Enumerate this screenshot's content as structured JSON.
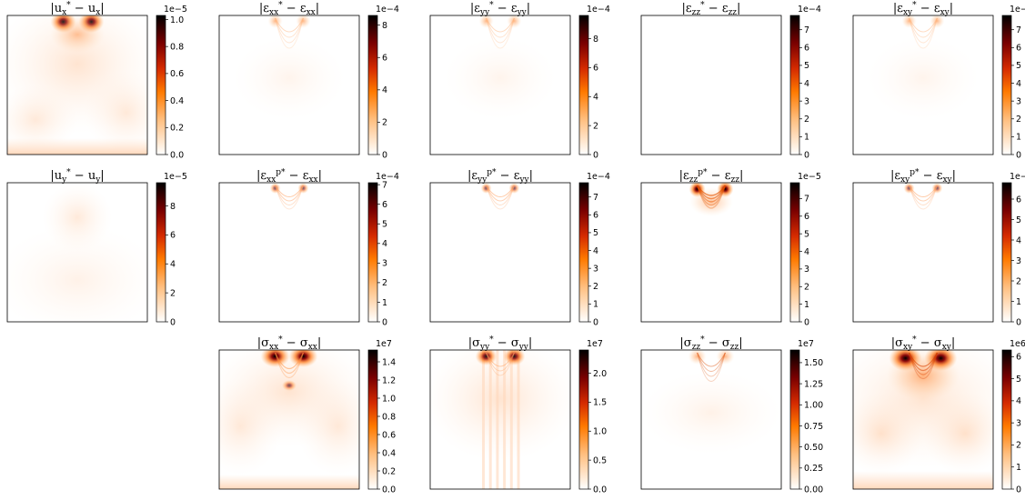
{
  "chart_data": [
    {
      "type": "heatmap",
      "title": "|u*_x − u_x|",
      "scale_label": "1e−5",
      "colorbar_ticks": [
        "0.0",
        "0.2",
        "0.4",
        "0.6",
        "0.8",
        "1.0"
      ],
      "vmax": 1.03,
      "pattern": "ux"
    },
    {
      "type": "heatmap",
      "title": "|ε*_xx − ε_xx|",
      "scale_label": "1e−4",
      "colorbar_ticks": [
        "0",
        "2",
        "4",
        "6",
        "8"
      ],
      "vmax": 8.6,
      "pattern": "strain"
    },
    {
      "type": "heatmap",
      "title": "|ε*_yy − ε_yy|",
      "scale_label": "1e−4",
      "colorbar_ticks": [
        "0",
        "2",
        "4",
        "6",
        "8"
      ],
      "vmax": 9.6,
      "pattern": "strain"
    },
    {
      "type": "heatmap",
      "title": "|ε*_zz − ε_zz|",
      "scale_label": "1e−4",
      "colorbar_ticks": [
        "0",
        "1",
        "2",
        "3",
        "4",
        "5",
        "6",
        "7"
      ],
      "vmax": 7.8,
      "pattern": "empty"
    },
    {
      "type": "heatmap",
      "title": "|ε*_xy − ε_xy|",
      "scale_label": "1e−4",
      "colorbar_ticks": [
        "0",
        "1",
        "2",
        "3",
        "4",
        "5",
        "6",
        "7"
      ],
      "vmax": 7.8,
      "pattern": "strain"
    },
    {
      "type": "heatmap",
      "title": "|u*_y − u_y|",
      "scale_label": "1e−5",
      "colorbar_ticks": [
        "0",
        "2",
        "4",
        "6",
        "8"
      ],
      "vmax": 9.6,
      "pattern": "uy"
    },
    {
      "type": "heatmap",
      "title": "|εp*_xx − ε_xx|",
      "scale_label": "1e−4",
      "colorbar_ticks": [
        "0",
        "1",
        "2",
        "3",
        "4",
        "5",
        "6",
        "7"
      ],
      "vmax": 7.1,
      "pattern": "plastic"
    },
    {
      "type": "heatmap",
      "title": "|εp*_yy − ε_yy|",
      "scale_label": "1e−4",
      "colorbar_ticks": [
        "0",
        "1",
        "2",
        "3",
        "4",
        "5",
        "6",
        "7"
      ],
      "vmax": 7.8,
      "pattern": "plastic"
    },
    {
      "type": "heatmap",
      "title": "|εp*_zz − ε_zz|",
      "scale_label": "1e−5",
      "colorbar_ticks": [
        "0",
        "1",
        "2",
        "3",
        "4",
        "5",
        "6",
        "7"
      ],
      "vmax": 7.9,
      "pattern": "plastic-strong"
    },
    {
      "type": "heatmap",
      "title": "|εp*_xy − ε_xy|",
      "scale_label": "1e−4",
      "colorbar_ticks": [
        "0",
        "1",
        "2",
        "3",
        "4",
        "5",
        "6"
      ],
      "vmax": 6.8,
      "pattern": "plastic"
    },
    {
      "type": "heatmap",
      "title": "|σ*_xx − σ_xx|",
      "scale_label": "1e7",
      "colorbar_ticks": [
        "0.0",
        "0.2",
        "0.4",
        "0.6",
        "0.8",
        "1.0",
        "1.2",
        "1.4"
      ],
      "vmax": 1.53,
      "pattern": "sxx"
    },
    {
      "type": "heatmap",
      "title": "|σ*_yy − σ_yy|",
      "scale_label": "1e7",
      "colorbar_ticks": [
        "0.0",
        "0.5",
        "1.0",
        "1.5",
        "2.0"
      ],
      "vmax": 2.4,
      "pattern": "syy"
    },
    {
      "type": "heatmap",
      "title": "|σ*_zz − σ_zz|",
      "scale_label": "1e7",
      "colorbar_ticks": [
        "0.00",
        "0.25",
        "0.50",
        "0.75",
        "1.00",
        "1.25",
        "1.50"
      ],
      "vmax": 1.65,
      "pattern": "szz"
    },
    {
      "type": "heatmap",
      "title": "|σ*_xy − σ_xy|",
      "scale_label": "1e6",
      "colorbar_ticks": [
        "0",
        "1",
        "2",
        "3",
        "4",
        "5",
        "6"
      ],
      "vmax": 6.3,
      "pattern": "sxy"
    }
  ],
  "title_parts": [
    [
      [
        "|u",
        ""
      ],
      [
        "x",
        "sub"
      ],
      [
        "*",
        "sup"
      ],
      [
        " − u",
        ""
      ],
      [
        "x",
        "sub"
      ],
      [
        "|",
        ""
      ]
    ],
    [
      [
        "|ε",
        ""
      ],
      [
        "xx",
        "sub"
      ],
      [
        "*",
        "sup"
      ],
      [
        " − ε",
        ""
      ],
      [
        "xx",
        "sub"
      ],
      [
        "|",
        ""
      ]
    ],
    [
      [
        "|ε",
        ""
      ],
      [
        "yy",
        "sub"
      ],
      [
        "*",
        "sup"
      ],
      [
        " − ε",
        ""
      ],
      [
        "yy",
        "sub"
      ],
      [
        "|",
        ""
      ]
    ],
    [
      [
        "|ε",
        ""
      ],
      [
        "zz",
        "sub"
      ],
      [
        "*",
        "sup"
      ],
      [
        " − ε",
        ""
      ],
      [
        "zz",
        "sub"
      ],
      [
        "|",
        ""
      ]
    ],
    [
      [
        "|ε",
        ""
      ],
      [
        "xy",
        "sub"
      ],
      [
        "*",
        "sup"
      ],
      [
        " − ε",
        ""
      ],
      [
        "xy",
        "sub"
      ],
      [
        "|",
        ""
      ]
    ],
    [
      [
        "|u",
        ""
      ],
      [
        "y",
        "sub"
      ],
      [
        "*",
        "sup"
      ],
      [
        " − u",
        ""
      ],
      [
        "y",
        "sub"
      ],
      [
        "|",
        ""
      ]
    ],
    [
      [
        "|ε",
        ""
      ],
      [
        "xx",
        "sub"
      ],
      [
        "p*",
        "sup"
      ],
      [
        " − ε",
        ""
      ],
      [
        "xx",
        "sub"
      ],
      [
        "|",
        ""
      ]
    ],
    [
      [
        "|ε",
        ""
      ],
      [
        "yy",
        "sub"
      ],
      [
        "p*",
        "sup"
      ],
      [
        " − ε",
        ""
      ],
      [
        "yy",
        "sub"
      ],
      [
        "|",
        ""
      ]
    ],
    [
      [
        "|ε",
        ""
      ],
      [
        "zz",
        "sub"
      ],
      [
        "p*",
        "sup"
      ],
      [
        " − ε",
        ""
      ],
      [
        "zz",
        "sub"
      ],
      [
        "|",
        ""
      ]
    ],
    [
      [
        "|ε",
        ""
      ],
      [
        "xy",
        "sub"
      ],
      [
        "p*",
        "sup"
      ],
      [
        " − ε",
        ""
      ],
      [
        "xy",
        "sub"
      ],
      [
        "|",
        ""
      ]
    ],
    [
      [
        "|σ",
        ""
      ],
      [
        "xx",
        "sub"
      ],
      [
        "*",
        "sup"
      ],
      [
        " − σ",
        ""
      ],
      [
        "xx",
        "sub"
      ],
      [
        "|",
        ""
      ]
    ],
    [
      [
        "|σ",
        ""
      ],
      [
        "yy",
        "sub"
      ],
      [
        "*",
        "sup"
      ],
      [
        " − σ",
        ""
      ],
      [
        "yy",
        "sub"
      ],
      [
        "|",
        ""
      ]
    ],
    [
      [
        "|σ",
        ""
      ],
      [
        "zz",
        "sub"
      ],
      [
        "*",
        "sup"
      ],
      [
        " − σ",
        ""
      ],
      [
        "zz",
        "sub"
      ],
      [
        "|",
        ""
      ]
    ],
    [
      [
        "|σ",
        ""
      ],
      [
        "xy",
        "sub"
      ],
      [
        "*",
        "sup"
      ],
      [
        " − σ",
        ""
      ],
      [
        "xy",
        "sub"
      ],
      [
        "|",
        ""
      ]
    ]
  ],
  "colormap": "gist_heat_r"
}
